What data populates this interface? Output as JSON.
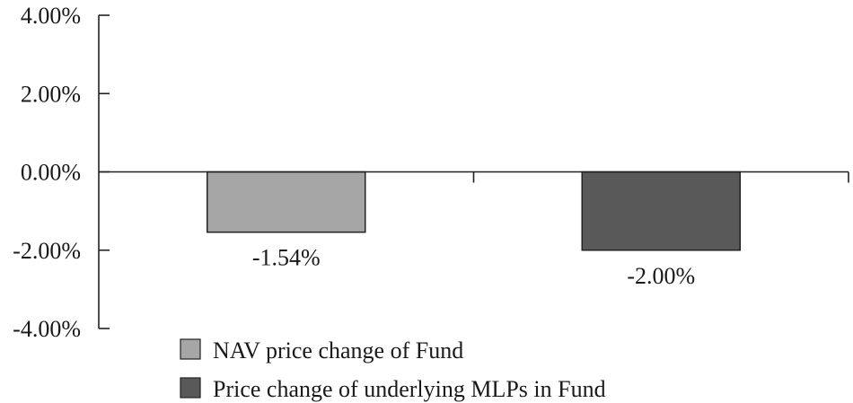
{
  "chart_data": {
    "type": "bar",
    "categories": [
      "NAV price change of Fund",
      "Price change of underlying MLPs in Fund"
    ],
    "values": [
      -1.54,
      -2.0
    ],
    "value_labels": [
      "-1.54%",
      "-2.00%"
    ],
    "ylim": [
      -4,
      4
    ],
    "yticks": [
      4,
      2,
      0,
      -2,
      -4
    ],
    "ytick_labels": [
      "4.00%",
      "2.00%",
      "0.00%",
      "-2.00%",
      "-4.00%"
    ],
    "title": "",
    "xlabel": "",
    "ylabel": "",
    "grid": false,
    "legend_position": "bottom",
    "legend": [
      {
        "label": "NAV price change of Fund",
        "color": "#a6a6a6"
      },
      {
        "label": "Price change of underlying MLPs in Fund",
        "color": "#595959"
      }
    ],
    "colors": [
      "#a6a6a6",
      "#595959"
    ]
  }
}
